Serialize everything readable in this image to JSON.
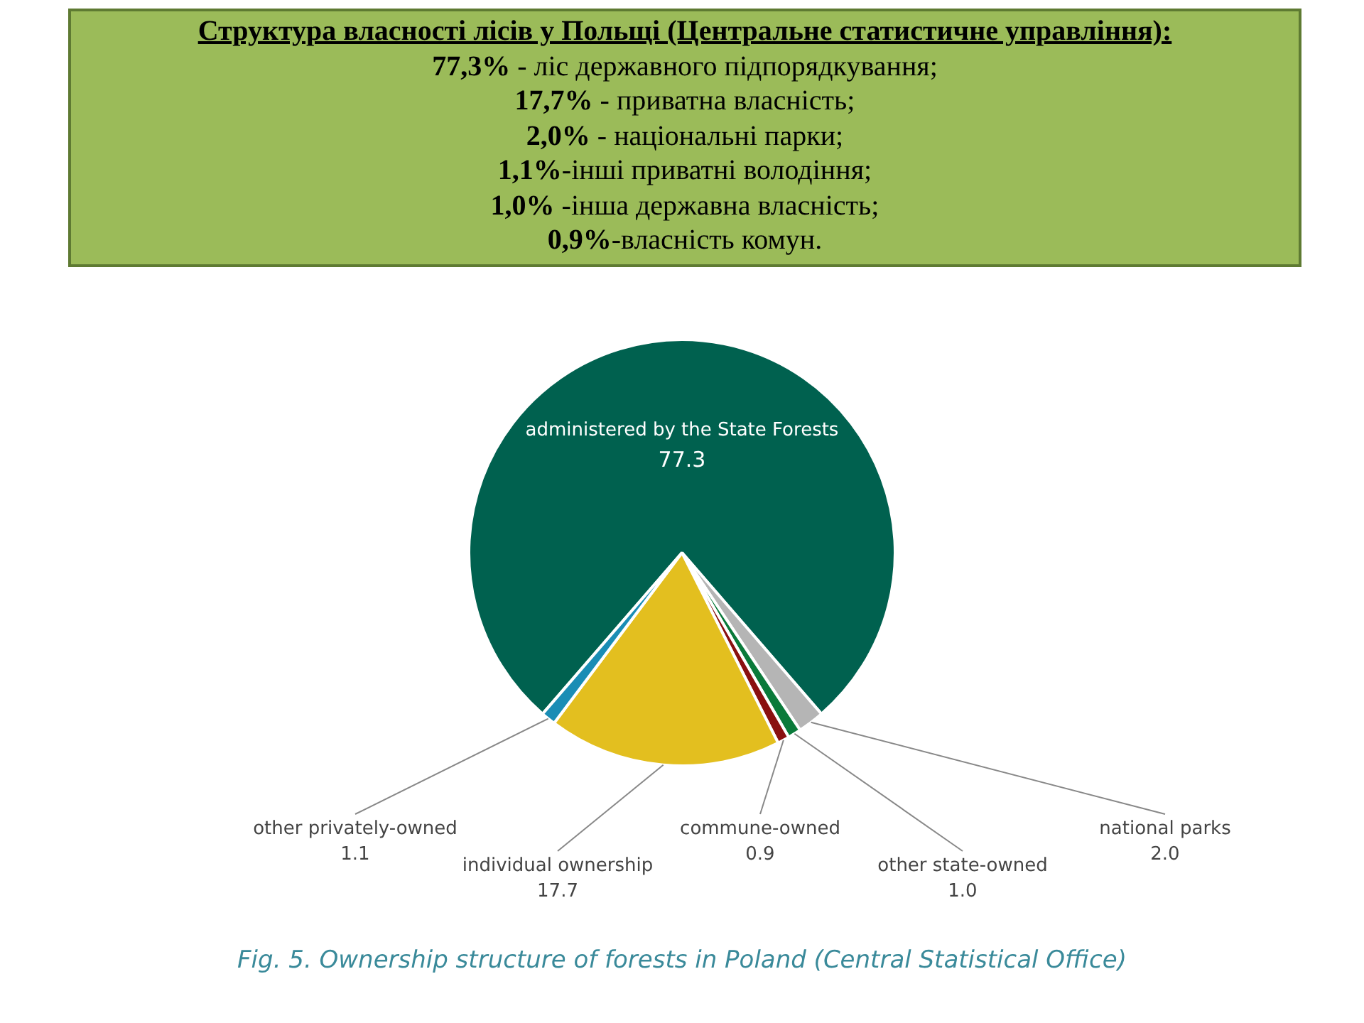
{
  "chart_data": {
    "type": "pie",
    "title": "Структура власності лісів у Польщі (Центральне статистичне управління):",
    "subtitle": "Fig. 5. Ownership structure of forests in Poland (Central Statistical Office)",
    "annotations": [
      "77,3% - ліс державного підпорядкування;",
      "17,7% - приватна власність;",
      "2,0% - національні парки;",
      "1,1%-інші приватні володіння;",
      "1,0% -інша державна власність;",
      "0,9%-власність комун."
    ],
    "categories": [
      "administered by the State Forests",
      "national parks",
      "other state-owned",
      "commune-owned",
      "individual ownership",
      "other privately-owned"
    ],
    "values": [
      77.3,
      2.0,
      1.0,
      0.9,
      17.7,
      1.1
    ],
    "colors": [
      "#00614f",
      "#b5b5b5",
      "#0a7a3a",
      "#8a1010",
      "#e3bf1f",
      "#1a8db5"
    ],
    "value_labels": [
      "77.3",
      "2.0",
      "1.0",
      "0.9",
      "17.7",
      "1.1"
    ]
  }
}
